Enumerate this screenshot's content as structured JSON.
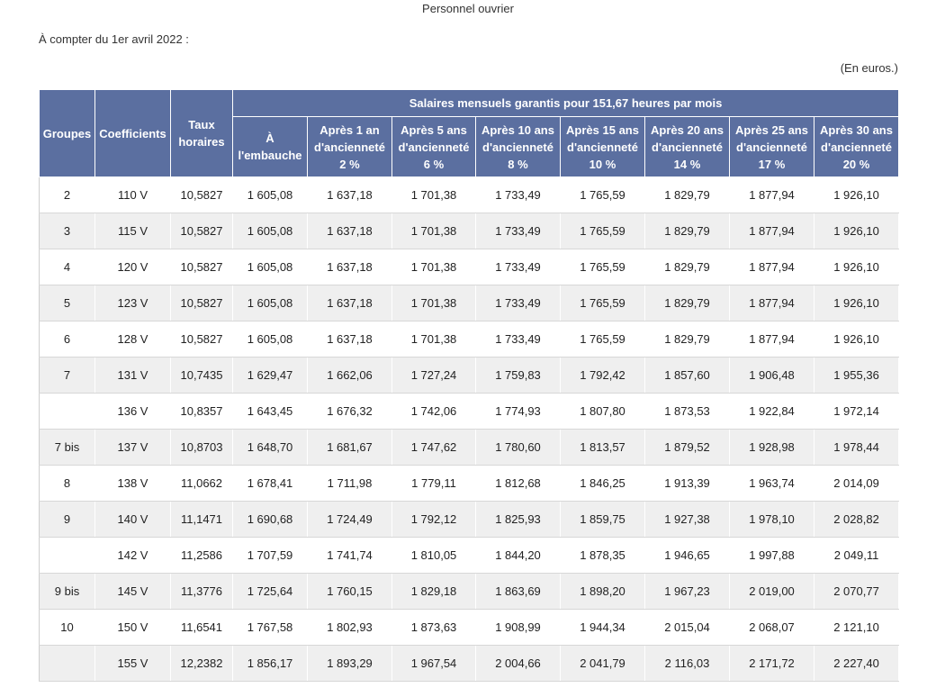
{
  "title": "Personnel ouvrier",
  "date_line": "À compter du 1er avril 2022 :",
  "unit_note": "(En euros.)",
  "table": {
    "headers": {
      "groupes": "Groupes",
      "coefficients": "Coefficients",
      "taux_horaires": "Taux horaires",
      "salaires_span": "Salaires mensuels garantis pour 151,67 heures par mois",
      "columns": [
        "À l'embauche",
        "Après 1 an d'ancienneté 2 %",
        "Après 5 ans d'ancienneté 6 %",
        "Après 10 ans d'ancienneté 8 %",
        "Après 15 ans d'ancienneté 10 %",
        "Après 20 ans d'ancienneté 14 %",
        "Après 25 ans d'ancienneté 17 %",
        "Après 30 ans d'ancienneté 20 %"
      ]
    },
    "rows": [
      [
        "2",
        "110 V",
        "10,5827",
        "1 605,08",
        "1 637,18",
        "1 701,38",
        "1 733,49",
        "1 765,59",
        "1 829,79",
        "1 877,94",
        "1 926,10"
      ],
      [
        "3",
        "115 V",
        "10,5827",
        "1 605,08",
        "1 637,18",
        "1 701,38",
        "1 733,49",
        "1 765,59",
        "1 829,79",
        "1 877,94",
        "1 926,10"
      ],
      [
        "4",
        "120 V",
        "10,5827",
        "1 605,08",
        "1 637,18",
        "1 701,38",
        "1 733,49",
        "1 765,59",
        "1 829,79",
        "1 877,94",
        "1 926,10"
      ],
      [
        "5",
        "123 V",
        "10,5827",
        "1 605,08",
        "1 637,18",
        "1 701,38",
        "1 733,49",
        "1 765,59",
        "1 829,79",
        "1 877,94",
        "1 926,10"
      ],
      [
        "6",
        "128 V",
        "10,5827",
        "1 605,08",
        "1 637,18",
        "1 701,38",
        "1 733,49",
        "1 765,59",
        "1 829,79",
        "1 877,94",
        "1 926,10"
      ],
      [
        "7",
        "131 V",
        "10,7435",
        "1 629,47",
        "1 662,06",
        "1 727,24",
        "1 759,83",
        "1 792,42",
        "1 857,60",
        "1 906,48",
        "1 955,36"
      ],
      [
        "",
        "136 V",
        "10,8357",
        "1 643,45",
        "1 676,32",
        "1 742,06",
        "1 774,93",
        "1 807,80",
        "1 873,53",
        "1 922,84",
        "1 972,14"
      ],
      [
        "7 bis",
        "137 V",
        "10,8703",
        "1 648,70",
        "1 681,67",
        "1 747,62",
        "1 780,60",
        "1 813,57",
        "1 879,52",
        "1 928,98",
        "1 978,44"
      ],
      [
        "8",
        "138 V",
        "11,0662",
        "1 678,41",
        "1 711,98",
        "1 779,11",
        "1 812,68",
        "1 846,25",
        "1 913,39",
        "1 963,74",
        "2 014,09"
      ],
      [
        "9",
        "140 V",
        "11,1471",
        "1 690,68",
        "1 724,49",
        "1 792,12",
        "1 825,93",
        "1 859,75",
        "1 927,38",
        "1 978,10",
        "2 028,82"
      ],
      [
        "",
        "142 V",
        "11,2586",
        "1 707,59",
        "1 741,74",
        "1 810,05",
        "1 844,20",
        "1 878,35",
        "1 946,65",
        "1 997,88",
        "2 049,11"
      ],
      [
        "9 bis",
        "145 V",
        "11,3776",
        "1 725,64",
        "1 760,15",
        "1 829,18",
        "1 863,69",
        "1 898,20",
        "1 967,23",
        "2 019,00",
        "2 070,77"
      ],
      [
        "10",
        "150 V",
        "11,6541",
        "1 767,58",
        "1 802,93",
        "1 873,63",
        "1 908,99",
        "1 944,34",
        "2 015,04",
        "2 068,07",
        "2 121,10"
      ],
      [
        "",
        "155 V",
        "12,2382",
        "1 856,17",
        "1 893,29",
        "1 967,54",
        "2 004,66",
        "2 041,79",
        "2 116,03",
        "2 171,72",
        "2 227,40"
      ]
    ]
  }
}
